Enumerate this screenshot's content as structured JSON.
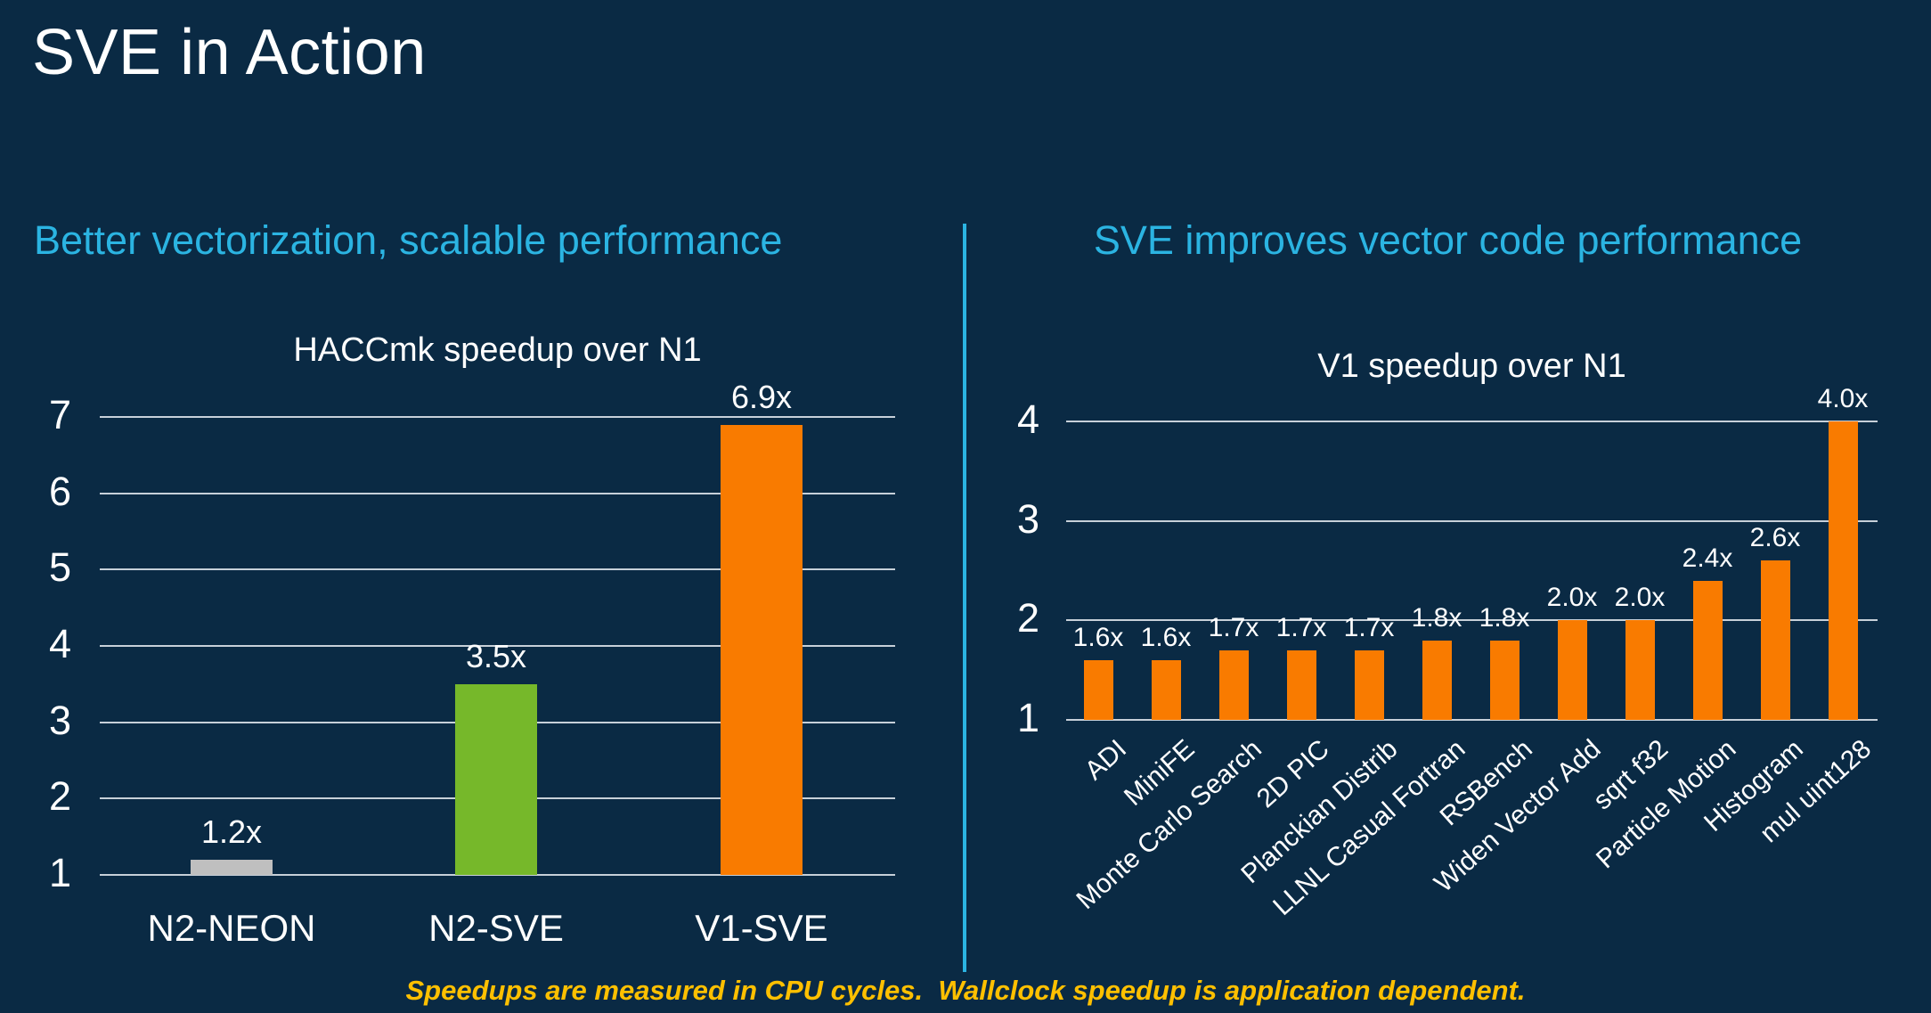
{
  "slide": {
    "title": "SVE in Action",
    "footnote": "Speedups are measured in CPU cycles.  Wallclock speedup is application dependent."
  },
  "panels": {
    "left": {
      "heading": "Better vectorization, scalable performance"
    },
    "right": {
      "heading": "SVE improves vector code performance"
    }
  },
  "colors": {
    "background": "#0A2A44",
    "accent_cyan": "#2BB4E2",
    "gridline": "#C7D0D9",
    "text_white": "#FFFFFF",
    "footnote_yellow": "#FFC000",
    "bar_gray": "#BFBFBF",
    "bar_green": "#76B82A",
    "bar_orange": "#F97B00"
  },
  "chart_data": [
    {
      "type": "bar",
      "title": "HACCmk speedup over N1",
      "categories": [
        "N2-NEON",
        "N2-SVE",
        "V1-SVE"
      ],
      "values": [
        1.2,
        3.5,
        6.9
      ],
      "value_labels": [
        "1.2x",
        "3.5x",
        "6.9x"
      ],
      "bar_colors": [
        "#BFBFBF",
        "#76B82A",
        "#F97B00"
      ],
      "xlabel": "",
      "ylabel": "",
      "ylim": [
        1,
        7
      ],
      "yticks": [
        1,
        2,
        3,
        4,
        5,
        6,
        7
      ],
      "grid": "horizontal",
      "legend": "none"
    },
    {
      "type": "bar",
      "title": "V1 speedup over N1",
      "categories": [
        "ADI",
        "MiniFE",
        "Monte Carlo Search",
        "2D PIC",
        "Planckian Distrib",
        "LLNL Casual Fortran",
        "RSBench",
        "Widen Vector Add",
        "sqrt f32",
        "Particle Motion",
        "Histogram",
        "mul uint128"
      ],
      "values": [
        1.6,
        1.6,
        1.7,
        1.7,
        1.7,
        1.8,
        1.8,
        2.0,
        2.0,
        2.4,
        2.6,
        4.0
      ],
      "value_labels": [
        "1.6x",
        "1.6x",
        "1.7x",
        "1.7x",
        "1.7x",
        "1.8x",
        "1.8x",
        "2.0x",
        "2.0x",
        "2.4x",
        "2.6x",
        "4.0x"
      ],
      "bar_colors": [
        "#F97B00",
        "#F97B00",
        "#F97B00",
        "#F97B00",
        "#F97B00",
        "#F97B00",
        "#F97B00",
        "#F97B00",
        "#F97B00",
        "#F97B00",
        "#F97B00",
        "#F97B00"
      ],
      "xlabel": "",
      "ylabel": "",
      "ylim": [
        1,
        4
      ],
      "yticks": [
        1,
        2,
        3,
        4
      ],
      "grid": "horizontal",
      "legend": "none"
    }
  ]
}
